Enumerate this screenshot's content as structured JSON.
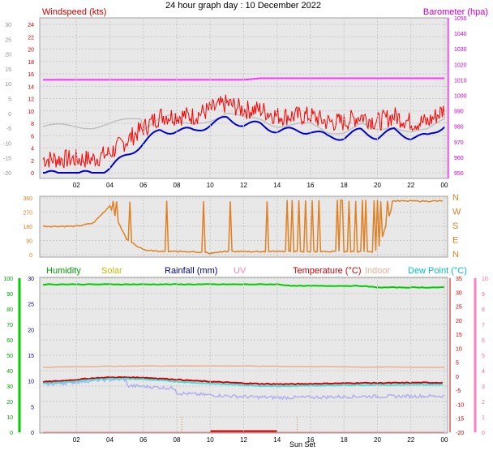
{
  "title": "24 hour graph day : 10 December 2022",
  "colors": {
    "wind": "#ff0000",
    "gust": "#ff0000",
    "avg": "#0000cc",
    "baro": "#ff33ff",
    "grey": "#c0c0c0",
    "dir": "#e08020",
    "humidity": "#00cc00",
    "solar": "#c8c800",
    "rain": "#000099",
    "uv": "#ff80c0",
    "temp": "#cc0000",
    "indoor": "#e8b090",
    "dew": "#40e0e0",
    "lavender": "#b0b0f0"
  },
  "x_tick_labels": [
    "02",
    "04",
    "06",
    "08",
    "10",
    "12",
    "14",
    "16",
    "18",
    "20",
    "22",
    "00"
  ],
  "panel1": {
    "left_label": "Windspeed (kts)",
    "right_label": "Barometer (hpa)",
    "left_ticks": [
      "24",
      "22",
      "20",
      "18",
      "16",
      "14",
      "12",
      "10",
      "8",
      "6",
      "4",
      "2",
      "0"
    ],
    "grey_left_ticks": [
      "30",
      "25",
      "20",
      "15",
      "10",
      "5",
      "0",
      "-5",
      "-10",
      "-15",
      "-20"
    ],
    "right_ticks": [
      "1050",
      "1040",
      "1030",
      "1020",
      "1010",
      "1000",
      "990",
      "980",
      "970",
      "960",
      "950"
    ]
  },
  "panel2": {
    "left_ticks": [
      "360",
      "270",
      "180",
      "90",
      "0"
    ],
    "right_ticks": [
      "N",
      "W",
      "S",
      "E",
      "N"
    ]
  },
  "panel3": {
    "labels": {
      "humidity": "Humidity",
      "solar": "Solar",
      "rain": "Rainfall (mm)",
      "uv": "UV",
      "temp": "Temperature (°C)",
      "indoor": "Indoor",
      "dew": "Dew Point (°C)"
    },
    "grey_ticks": [
      "30",
      "25",
      "20",
      "15",
      "10",
      "5",
      "0"
    ],
    "humidity_ticks": [
      "100",
      "90",
      "80",
      "70",
      "60",
      "50",
      "40",
      "30",
      "20",
      "10",
      "0"
    ],
    "temp_ticks": [
      "35",
      "30",
      "25",
      "20",
      "15",
      "10",
      "5",
      "0",
      "-5",
      "-10",
      "-15",
      "-20"
    ],
    "uv_ticks": [
      "10",
      "9",
      "8",
      "7",
      "6",
      "5",
      "4",
      "3",
      "2",
      "1",
      "0"
    ],
    "annotation": "Sun Set"
  },
  "chart_data": [
    {
      "type": "line",
      "title": "24 hour graph day : 10 December 2022",
      "x": [
        0,
        1,
        2,
        3,
        4,
        5,
        6,
        7,
        8,
        9,
        10,
        11,
        12,
        13,
        14,
        15,
        16,
        17,
        18,
        19,
        20,
        21,
        22,
        23,
        24
      ],
      "series": [
        {
          "name": "Windspeed (kts)",
          "values": [
            1,
            1,
            1,
            1,
            2,
            4,
            6,
            8,
            8,
            8,
            9,
            10,
            9,
            9,
            8,
            8,
            8,
            7,
            7,
            8,
            7,
            8,
            7,
            7,
            9
          ]
        },
        {
          "name": "Barometer (hpa)",
          "values": [
            1010,
            1010,
            1010,
            1010,
            1010,
            1010,
            1010,
            1010,
            1010,
            1010,
            1010,
            1010,
            1010,
            1011,
            1011,
            1011,
            1011,
            1011,
            1011,
            1011,
            1011,
            1011,
            1011,
            1011,
            1011
          ]
        }
      ],
      "xlabel": "",
      "ylabel": "Windspeed (kts)",
      "ylim": [
        0,
        24
      ],
      "grid": true
    },
    {
      "type": "line",
      "x": [
        0,
        1,
        2,
        3,
        4,
        5,
        6,
        7,
        8,
        9,
        10,
        11,
        12,
        13,
        14,
        15,
        16,
        17,
        18,
        19,
        20,
        21,
        22,
        23,
        24
      ],
      "series": [
        {
          "values": [
            180,
            180,
            180,
            200,
            310,
            100,
            30,
            20,
            20,
            20,
            10,
            20,
            20,
            20,
            20,
            20,
            20,
            20,
            20,
            20,
            20,
            340,
            340,
            340,
            340
          ]
        }
      ],
      "ylim": [
        0,
        360
      ]
    },
    {
      "type": "line",
      "x": [
        0,
        1,
        2,
        3,
        4,
        5,
        6,
        7,
        8,
        9,
        10,
        11,
        12,
        13,
        14,
        15,
        16,
        17,
        18,
        19,
        20,
        21,
        22,
        23,
        24
      ],
      "series": [
        {
          "name": "Humidity",
          "values": [
            96,
            96,
            96,
            96,
            96,
            96,
            96,
            96,
            96,
            96,
            96,
            96,
            96,
            96,
            96,
            95,
            95,
            95,
            95,
            95,
            94,
            94,
            94,
            94,
            94
          ]
        },
        {
          "name": "Temperature (°C)",
          "values": [
            -2.0,
            -1.7,
            -1.2,
            -0.7,
            -0.4,
            -0.4,
            -0.5,
            -0.8,
            -1.2,
            -1.6,
            -1.9,
            -2.2,
            -2.5,
            -2.7,
            -2.8,
            -2.8,
            -2.7,
            -2.6,
            -2.5,
            -2.4,
            -2.4,
            -2.4,
            -2.3,
            -2.3,
            -2.3
          ]
        },
        {
          "name": "Dew Point (°C)",
          "values": [
            -2.6,
            -2.3,
            -1.8,
            -1.2,
            -0.9,
            -0.9,
            -1.1,
            -1.5,
            -1.9,
            -2.3,
            -2.6,
            -2.9,
            -3.2,
            -3.4,
            -3.5,
            -3.5,
            -3.4,
            -3.3,
            -3.2,
            -3.1,
            -3.1,
            -3.1,
            -3.0,
            -3.0,
            -3.0
          ]
        },
        {
          "name": "Indoor",
          "values": [
            3.2,
            3.3,
            3.4,
            3.5,
            3.6,
            3.6,
            3.7,
            3.7,
            3.7,
            3.7,
            3.7,
            3.7,
            3.7,
            3.6,
            3.6,
            3.5,
            3.5,
            3.4,
            3.4,
            3.3,
            3.3,
            3.3,
            3.2,
            3.2,
            3.2
          ]
        }
      ],
      "ylim": [
        -20,
        35
      ],
      "grid": true
    }
  ]
}
